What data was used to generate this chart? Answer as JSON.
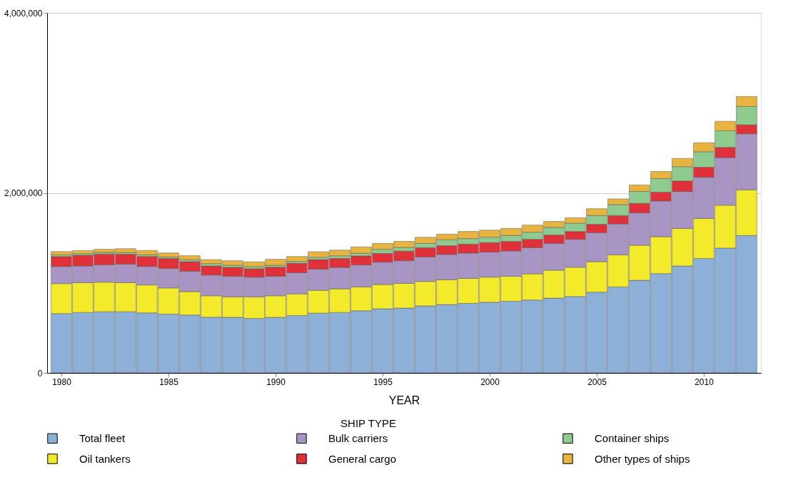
{
  "chart_data": {
    "type": "bar",
    "stacked": true,
    "xlabel": "YEAR",
    "legend_title": "SHIP TYPE",
    "x": [
      1980,
      1981,
      1982,
      1983,
      1984,
      1985,
      1986,
      1987,
      1988,
      1989,
      1990,
      1991,
      1992,
      1993,
      1994,
      1995,
      1996,
      1997,
      1998,
      1999,
      2000,
      2001,
      2002,
      2003,
      2004,
      2005,
      2006,
      2007,
      2008,
      2009,
      2010,
      2011,
      2012
    ],
    "xlim": [
      1979.5,
      2012.5
    ],
    "xticks": [
      1980,
      1985,
      1990,
      1995,
      2000,
      2005,
      2010
    ],
    "ylim": [
      0,
      4000000
    ],
    "yticks": [
      0,
      {
        "value": 2000000,
        "label": "2,000,000"
      },
      {
        "value": 4000000,
        "label": "4,000,000"
      }
    ],
    "grid": "y",
    "legend": "bottom",
    "series": [
      {
        "name": "Total fleet",
        "color": "#8db0d8",
        "values": [
          659000,
          672000,
          680000,
          680000,
          667000,
          653000,
          643000,
          619000,
          617000,
          606000,
          617000,
          637000,
          664000,
          672000,
          691000,
          712000,
          720000,
          744000,
          760000,
          772000,
          786000,
          796000,
          810000,
          831000,
          849000,
          897000,
          955000,
          1029000,
          1103000,
          1188000,
          1272000,
          1387000,
          1526000
        ]
      },
      {
        "name": "Oil tankers",
        "color": "#f2ea2a",
        "values": [
          333000,
          330000,
          328000,
          322000,
          310000,
          291000,
          260000,
          238000,
          227000,
          238000,
          240000,
          241000,
          254000,
          262000,
          264000,
          270000,
          275000,
          272000,
          275000,
          278000,
          278000,
          278000,
          291000,
          310000,
          325000,
          339000,
          357000,
          389000,
          410000,
          417000,
          444000,
          476000,
          508000
        ]
      },
      {
        "name": "Bulk carriers",
        "color": "#a995c4",
        "values": [
          190000,
          186000,
          193000,
          206000,
          206000,
          217000,
          227000,
          230000,
          230000,
          220000,
          217000,
          235000,
          235000,
          238000,
          244000,
          248000,
          252000,
          272000,
          281000,
          281000,
          278000,
          281000,
          290000,
          298000,
          310000,
          322000,
          344000,
          360000,
          397000,
          410000,
          458000,
          529000,
          622000
        ]
      },
      {
        "name": "General cargo",
        "color": "#e0303a",
        "values": [
          111000,
          119000,
          119000,
          111000,
          111000,
          111000,
          106000,
          101000,
          98000,
          93000,
          101000,
          106000,
          106000,
          100000,
          101000,
          98000,
          106000,
          103000,
          98000,
          100000,
          106000,
          106000,
          93000,
          93000,
          87000,
          93000,
          92000,
          106000,
          98000,
          117000,
          111000,
          114000,
          100000
        ]
      },
      {
        "name": "Container ships",
        "color": "#8fcb8e",
        "values": [
          18000,
          18000,
          19000,
          19000,
          18000,
          16000,
          21000,
          26000,
          24000,
          24000,
          21000,
          21000,
          26000,
          29000,
          29000,
          45000,
          40000,
          48000,
          66000,
          61000,
          59000,
          66000,
          79000,
          85000,
          93000,
          98000,
          122000,
          133000,
          151000,
          159000,
          172000,
          183000,
          204000
        ]
      },
      {
        "name": "Other types of ships",
        "color": "#e8b440",
        "values": [
          37000,
          34000,
          34000,
          42000,
          48000,
          45000,
          45000,
          45000,
          50000,
          52000,
          66000,
          53000,
          61000,
          63000,
          71000,
          66000,
          69000,
          67000,
          61000,
          79000,
          79000,
          79000,
          79000,
          66000,
          60000,
          75000,
          63000,
          71000,
          79000,
          92000,
          100000,
          106000,
          111000
        ]
      }
    ]
  }
}
